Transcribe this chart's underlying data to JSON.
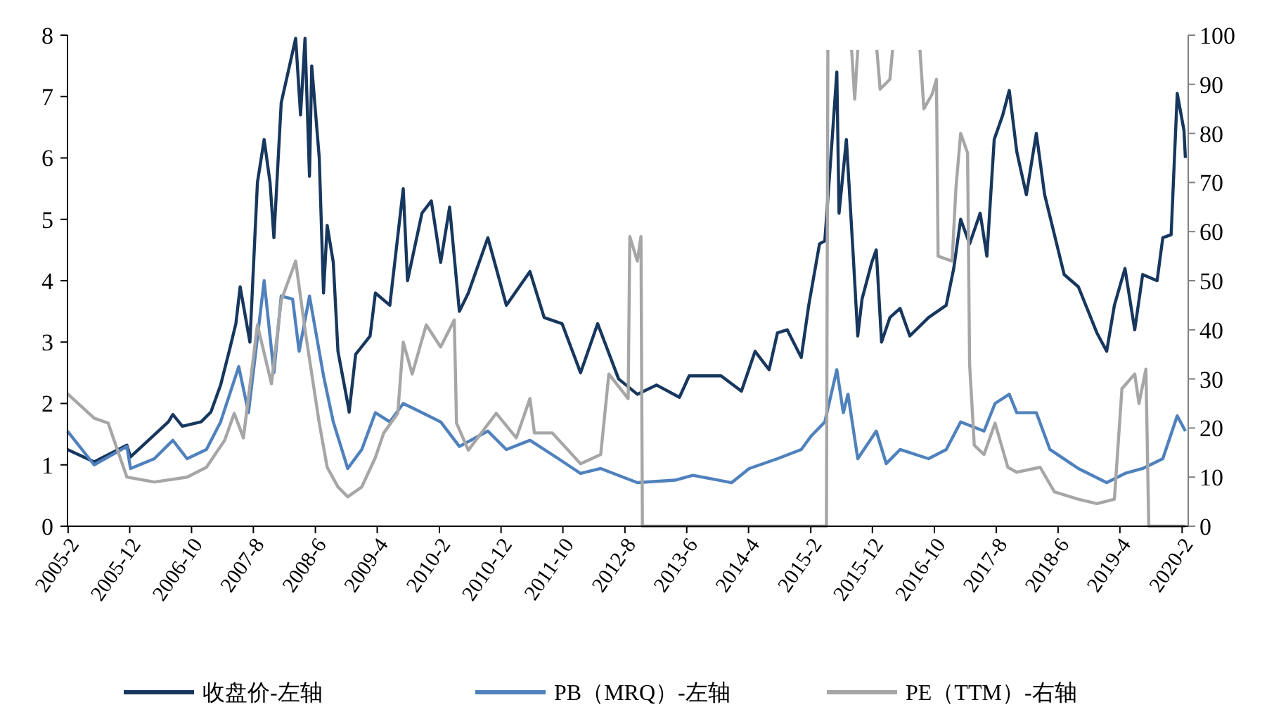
{
  "chart_data": {
    "type": "line",
    "xlim": [
      "2005-01-29",
      "2020-03-02"
    ],
    "xticks": [
      {
        "value": "2005-02-01",
        "label": "2005-2"
      },
      {
        "value": "2005-12-01",
        "label": "2005-12"
      },
      {
        "value": "2006-10-01",
        "label": "2006-10"
      },
      {
        "value": "2007-08-01",
        "label": "2007-8"
      },
      {
        "value": "2008-06-01",
        "label": "2008-6"
      },
      {
        "value": "2009-04-01",
        "label": "2009-4"
      },
      {
        "value": "2010-02-01",
        "label": "2010-2"
      },
      {
        "value": "2010-12-01",
        "label": "2010-12"
      },
      {
        "value": "2011-10-01",
        "label": "2011-10"
      },
      {
        "value": "2012-08-01",
        "label": "2012-8"
      },
      {
        "value": "2013-06-01",
        "label": "2013-6"
      },
      {
        "value": "2014-04-01",
        "label": "2014-4"
      },
      {
        "value": "2015-02-01",
        "label": "2015-2"
      },
      {
        "value": "2015-12-01",
        "label": "2015-12"
      },
      {
        "value": "2016-10-01",
        "label": "2016-10"
      },
      {
        "value": "2017-08-01",
        "label": "2017-8"
      },
      {
        "value": "2018-06-01",
        "label": "2018-6"
      },
      {
        "value": "2019-04-01",
        "label": "2019-4"
      },
      {
        "value": "2020-02-01",
        "label": "2020-2"
      }
    ],
    "ylim": [
      0,
      8
    ],
    "yticks": [
      0,
      1,
      2,
      3,
      4,
      5,
      6,
      7,
      8
    ],
    "y2lim": [
      0,
      100
    ],
    "y2ticks": [
      0,
      10,
      20,
      30,
      40,
      50,
      60,
      70,
      80,
      90,
      100
    ],
    "grid": false,
    "legend": "bottom",
    "marker": "none",
    "line_style": "solid",
    "series": [
      {
        "name": "收盘价-左轴",
        "color": "#17375e",
        "axis": "y",
        "x": [
          "2005-01-29",
          "2005-06-09",
          "2005-11-17",
          "2005-12-05",
          "2006-06-09",
          "2006-07-01",
          "2006-08-17",
          "2006-11-17",
          "2007-01-04",
          "2007-02-21",
          "2007-04-04",
          "2007-05-07",
          "2007-05-28",
          "2007-07-15",
          "2007-08-21",
          "2007-09-23",
          "2007-10-22",
          "2007-11-10",
          "2007-12-16",
          "2008-01-19",
          "2008-02-25",
          "2008-03-20",
          "2008-04-11",
          "2008-05-03",
          "2008-05-14",
          "2008-06-20",
          "2008-07-11",
          "2008-07-29",
          "2008-08-28",
          "2008-09-20",
          "2008-11-07",
          "2008-11-14",
          "2008-12-16",
          "2009-02-25",
          "2009-03-23",
          "2009-06-02",
          "2009-08-07",
          "2009-08-28",
          "2009-11-07",
          "2009-12-23",
          "2010-02-07",
          "2010-03-23",
          "2010-05-10",
          "2010-06-23",
          "2010-09-27",
          "2010-12-27",
          "2011-04-22",
          "2011-07-01",
          "2011-09-27",
          "2011-12-27",
          "2012-03-20",
          "2012-07-01",
          "2012-10-01",
          "2013-01-04",
          "2013-04-26",
          "2013-06-13",
          "2013-11-17",
          "2014-02-25",
          "2014-05-03",
          "2014-07-11",
          "2014-08-21",
          "2014-10-08",
          "2014-12-16",
          "2015-01-22",
          "2015-03-16",
          "2015-04-11",
          "2015-05-17",
          "2015-06-09",
          "2015-06-20",
          "2015-07-26",
          "2015-08-28",
          "2015-09-20",
          "2015-10-11",
          "2015-11-28",
          "2015-12-20",
          "2016-01-15",
          "2016-02-25",
          "2016-04-15",
          "2016-06-02",
          "2016-09-02",
          "2016-11-28",
          "2017-01-04",
          "2017-02-07",
          "2017-03-23",
          "2017-05-14",
          "2017-06-16",
          "2017-07-22",
          "2017-09-02",
          "2017-10-04",
          "2017-11-10",
          "2017-12-27",
          "2018-02-14",
          "2018-03-27",
          "2018-07-01",
          "2018-09-09",
          "2018-12-09",
          "2019-01-26",
          "2019-03-05",
          "2019-04-26",
          "2019-06-13",
          "2019-07-22",
          "2019-10-01",
          "2019-10-29",
          "2019-12-09",
          "2020-01-08",
          "2020-02-10",
          "2020-02-17"
        ],
        "values": [
          1.25,
          1.05,
          1.32,
          1.13,
          1.7,
          1.82,
          1.63,
          1.7,
          1.86,
          2.3,
          2.85,
          3.3,
          3.9,
          3.0,
          5.6,
          6.3,
          5.6,
          4.7,
          6.9,
          7.4,
          7.95,
          6.7,
          7.95,
          5.7,
          7.5,
          6.0,
          3.8,
          4.9,
          4.3,
          2.85,
          2.0,
          1.86,
          2.8,
          3.1,
          3.8,
          3.6,
          5.5,
          4.0,
          5.1,
          5.3,
          4.3,
          5.2,
          3.5,
          3.8,
          4.7,
          3.6,
          4.15,
          3.4,
          3.3,
          2.5,
          3.3,
          2.4,
          2.15,
          2.3,
          2.1,
          2.45,
          2.45,
          2.2,
          2.85,
          2.55,
          3.15,
          3.2,
          2.75,
          3.6,
          4.6,
          4.65,
          6.3,
          7.4,
          5.1,
          6.3,
          4.45,
          3.1,
          3.7,
          4.3,
          4.5,
          3.0,
          3.4,
          3.55,
          3.1,
          3.4,
          3.6,
          4.2,
          5.0,
          4.6,
          5.1,
          4.4,
          6.3,
          6.7,
          7.1,
          6.1,
          5.4,
          6.4,
          5.4,
          4.1,
          3.9,
          3.15,
          2.85,
          3.6,
          4.2,
          3.2,
          4.1,
          4.0,
          4.7,
          4.75,
          7.05,
          6.45,
          6.0
        ]
      },
      {
        "name": "PB（MRQ）-左轴",
        "color": "#4f81bd",
        "axis": "y",
        "x": [
          "2005-01-29",
          "2005-06-09",
          "2005-11-17",
          "2005-12-05",
          "2006-04-01",
          "2006-07-01",
          "2006-09-09",
          "2006-12-13",
          "2007-02-21",
          "2007-05-21",
          "2007-07-08",
          "2007-09-23",
          "2007-11-10",
          "2007-12-16",
          "2008-02-10",
          "2008-03-13",
          "2008-05-03",
          "2008-07-11",
          "2008-08-28",
          "2008-11-07",
          "2009-01-15",
          "2009-03-23",
          "2009-06-02",
          "2009-08-07",
          "2009-11-07",
          "2010-02-07",
          "2010-05-10",
          "2010-09-27",
          "2010-12-27",
          "2011-04-22",
          "2011-09-09",
          "2011-12-27",
          "2012-04-04",
          "2012-10-01",
          "2013-04-04",
          "2013-07-01",
          "2014-01-08",
          "2014-04-04",
          "2014-08-21",
          "2014-12-16",
          "2015-02-03",
          "2015-04-11",
          "2015-06-09",
          "2015-07-11",
          "2015-08-03",
          "2015-09-20",
          "2015-12-20",
          "2016-02-07",
          "2016-04-15",
          "2016-09-02",
          "2016-11-28",
          "2017-02-07",
          "2017-06-02",
          "2017-07-26",
          "2017-10-04",
          "2017-11-10",
          "2018-02-14",
          "2018-04-22",
          "2018-09-09",
          "2019-01-26",
          "2019-04-26",
          "2019-07-22",
          "2019-10-29",
          "2020-01-08",
          "2020-02-17"
        ],
        "values": [
          1.55,
          1.0,
          1.3,
          0.94,
          1.1,
          1.4,
          1.1,
          1.25,
          1.7,
          2.6,
          1.85,
          4.0,
          2.5,
          3.75,
          3.7,
          2.85,
          3.75,
          2.45,
          1.7,
          0.94,
          1.25,
          1.85,
          1.7,
          2.0,
          1.85,
          1.7,
          1.3,
          1.55,
          1.25,
          1.4,
          1.1,
          0.86,
          0.94,
          0.71,
          0.75,
          0.83,
          0.71,
          0.94,
          1.1,
          1.25,
          1.47,
          1.7,
          2.55,
          1.85,
          2.15,
          1.1,
          1.55,
          1.02,
          1.25,
          1.1,
          1.25,
          1.7,
          1.55,
          2.0,
          2.15,
          1.85,
          1.85,
          1.25,
          0.94,
          0.71,
          0.86,
          0.94,
          1.1,
          1.8,
          1.55
        ]
      },
      {
        "name": "PE（TTM）-右轴",
        "color": "#a6a6a6",
        "axis": "y2",
        "x": [
          "2005-01-29",
          "2005-06-09",
          "2005-08-17",
          "2005-11-17",
          "2006-04-01",
          "2006-09-09",
          "2006-12-13",
          "2007-03-13",
          "2007-04-29",
          "2007-06-13",
          "2007-08-21",
          "2007-10-29",
          "2007-12-16",
          "2008-02-25",
          "2008-04-11",
          "2008-06-20",
          "2008-07-29",
          "2008-09-20",
          "2008-11-07",
          "2009-01-15",
          "2009-03-23",
          "2009-05-03",
          "2009-07-11",
          "2009-08-07",
          "2009-09-20",
          "2009-11-28",
          "2010-02-07",
          "2010-04-15",
          "2010-04-26",
          "2010-06-23",
          "2010-11-07",
          "2011-02-14",
          "2011-04-22",
          "2011-05-14",
          "2011-08-10",
          "2011-12-27",
          "2012-04-04",
          "2012-05-14",
          "2012-08-17",
          "2012-08-25",
          "2012-10-01",
          "2012-10-19",
          "2012-10-26",
          "2015-04-19",
          "2015-04-26",
          "2015-05-10",
          "2015-08-21",
          "2015-09-05",
          "2015-09-20",
          "2015-10-04",
          "2015-12-23",
          "2016-01-08",
          "2016-02-25",
          "2016-03-09",
          "2016-03-23",
          "2016-07-22",
          "2016-08-10",
          "2016-09-20",
          "2016-10-11",
          "2016-10-19",
          "2016-12-27",
          "2017-01-15",
          "2017-02-07",
          "2017-03-13",
          "2017-03-23",
          "2017-04-15",
          "2017-06-02",
          "2017-07-26",
          "2017-09-27",
          "2017-11-10",
          "2018-03-05",
          "2018-05-14",
          "2018-09-09",
          "2018-12-09",
          "2019-03-05",
          "2019-04-11",
          "2019-06-13",
          "2019-07-04",
          "2019-08-07",
          "2019-08-21",
          "2020-02-17"
        ],
        "values": [
          27,
          22,
          21,
          10,
          9,
          10,
          12,
          17.5,
          23,
          18,
          41,
          29,
          46,
          54,
          40,
          21,
          12,
          8,
          6,
          8,
          14,
          19,
          23,
          37.5,
          31,
          41,
          36.5,
          42,
          21,
          15.5,
          23,
          18,
          26,
          19,
          19,
          12.7,
          14.6,
          31,
          26,
          59,
          54,
          59,
          0,
          0,
          97,
          null,
          97,
          87,
          97,
          null,
          97,
          89,
          91,
          97,
          null,
          97,
          85,
          88,
          91,
          55,
          54,
          69,
          80,
          76,
          33,
          16.5,
          14.6,
          21,
          12,
          11,
          12,
          7,
          5.5,
          4.6,
          5.5,
          28,
          31,
          25,
          32,
          0,
          0
        ]
      }
    ]
  }
}
